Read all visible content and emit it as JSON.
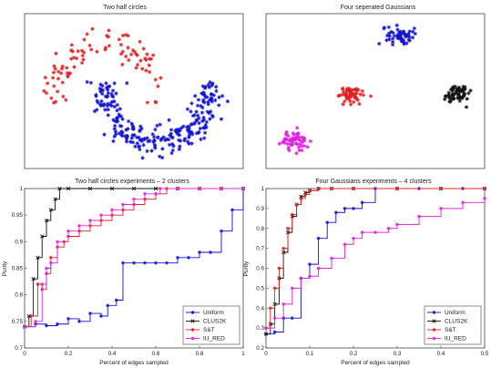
{
  "figure": {
    "panels": [
      {
        "id": "p1",
        "title": "Two half circles"
      },
      {
        "id": "p2",
        "title": "Four seperated Gaussians"
      },
      {
        "id": "p3",
        "title": "Two half circles experiments – 2 clusters"
      },
      {
        "id": "p4",
        "title": "Four Gaussians experiments – 4 clusters"
      }
    ]
  },
  "chart_data": [
    {
      "type": "scatter",
      "title": "Two half circles",
      "xlim": [
        -1.5,
        2.6
      ],
      "ylim": [
        -1.05,
        1.45
      ],
      "ticks": false,
      "series": [
        {
          "color": "#e02020",
          "shape": "upper-half-moon",
          "center": [
            0,
            0
          ],
          "radius": 1.0,
          "points": 90
        },
        {
          "color": "#1010d0",
          "shape": "lower-half-moon",
          "center": [
            1.0,
            0.35
          ],
          "radius": 1.0,
          "points": 260
        }
      ]
    },
    {
      "type": "scatter",
      "title": "Four seperated Gaussians",
      "xlim": [
        -1.2,
        4.0
      ],
      "ylim": [
        -1.6,
        3.2
      ],
      "ticks": false,
      "series": [
        {
          "color": "#1010d0",
          "center": [
            2.0,
            2.5
          ],
          "sd": 0.15,
          "points": 60
        },
        {
          "color": "#e02020",
          "center": [
            0.8,
            0.7
          ],
          "sd": 0.15,
          "points": 60
        },
        {
          "color": "#101010",
          "center": [
            3.3,
            0.7
          ],
          "sd": 0.15,
          "points": 60
        },
        {
          "color": "#e020e0",
          "center": [
            -0.5,
            -0.7
          ],
          "sd": 0.15,
          "points": 60
        }
      ]
    },
    {
      "type": "line",
      "title": "Two half circles experiments – 2 clusters",
      "xlabel": "Percent of edges sampled",
      "ylabel": "Purity",
      "xlim": [
        0,
        1
      ],
      "ylim": [
        0.7,
        1.0
      ],
      "xticks": [
        "0",
        "0.2",
        "0.4",
        "0.6",
        "0.8",
        "1"
      ],
      "yticks": [
        "0.7",
        "0.75",
        "0.8",
        "0.85",
        "0.9",
        "0.95",
        "1"
      ],
      "legend": "bottom-right",
      "series": [
        {
          "name": "Uniform",
          "color": "#1010d0",
          "marker": "*",
          "x": [
            0.0,
            0.05,
            0.1,
            0.15,
            0.2,
            0.25,
            0.3,
            0.35,
            0.38,
            0.42,
            0.45,
            0.5,
            0.55,
            0.6,
            0.65,
            0.7,
            0.75,
            0.8,
            0.85,
            0.9,
            0.95,
            1.0
          ],
          "y": [
            0.74,
            0.745,
            0.742,
            0.745,
            0.755,
            0.75,
            0.765,
            0.76,
            0.78,
            0.79,
            0.86,
            0.86,
            0.86,
            0.86,
            0.86,
            0.87,
            0.87,
            0.88,
            0.88,
            0.92,
            0.96,
            1.0
          ]
        },
        {
          "name": "CLUS2K",
          "color": "#101010",
          "marker": "x",
          "x": [
            0.0,
            0.02,
            0.04,
            0.06,
            0.08,
            0.1,
            0.12,
            0.14,
            0.16,
            0.2,
            0.3,
            0.4,
            0.5,
            0.6,
            0.7,
            0.8,
            0.9,
            1.0
          ],
          "y": [
            0.74,
            0.76,
            0.83,
            0.87,
            0.91,
            0.94,
            0.96,
            0.98,
            1.0,
            1.0,
            1.0,
            1.0,
            1.0,
            1.0,
            1.0,
            1.0,
            1.0,
            1.0
          ]
        },
        {
          "name": "S&T",
          "color": "#e02020",
          "marker": "*",
          "x": [
            0.0,
            0.03,
            0.06,
            0.08,
            0.1,
            0.12,
            0.15,
            0.18,
            0.2,
            0.25,
            0.3,
            0.35,
            0.4,
            0.45,
            0.5,
            0.55,
            0.6,
            0.65,
            0.7,
            0.8,
            0.9,
            1.0
          ],
          "y": [
            0.74,
            0.76,
            0.82,
            0.81,
            0.84,
            0.87,
            0.89,
            0.9,
            0.91,
            0.92,
            0.93,
            0.94,
            0.95,
            0.96,
            0.97,
            0.98,
            0.99,
            1.0,
            1.0,
            1.0,
            1.0,
            1.0
          ]
        },
        {
          "name": "IU_RED",
          "color": "#e020e0",
          "marker": "*",
          "x": [
            0.0,
            0.05,
            0.08,
            0.1,
            0.12,
            0.15,
            0.2,
            0.25,
            0.3,
            0.35,
            0.4,
            0.45,
            0.5,
            0.55,
            0.6,
            0.62,
            0.7,
            0.8,
            0.9,
            1.0
          ],
          "y": [
            0.74,
            0.75,
            0.82,
            0.85,
            0.86,
            0.9,
            0.92,
            0.93,
            0.94,
            0.95,
            0.96,
            0.97,
            0.98,
            0.99,
            0.99,
            1.0,
            1.0,
            1.0,
            1.0,
            1.0
          ]
        }
      ]
    },
    {
      "type": "line",
      "title": "Four Gaussians experiments – 4 clusters",
      "xlabel": "Percent of edges sampled",
      "ylabel": "Purity",
      "xlim": [
        0,
        0.5
      ],
      "ylim": [
        0.2,
        1.0
      ],
      "xticks": [
        "0",
        "0.1",
        "0.2",
        "0.3",
        "0.4",
        "0.5"
      ],
      "yticks": [
        "0.2",
        "0.3",
        "0.4",
        "0.5",
        "0.6",
        "0.7",
        "0.8",
        "0.9",
        "1"
      ],
      "legend": "bottom-right",
      "series": [
        {
          "name": "Uniform",
          "color": "#1010d0",
          "marker": "*",
          "x": [
            0.0,
            0.02,
            0.04,
            0.06,
            0.08,
            0.1,
            0.12,
            0.14,
            0.16,
            0.18,
            0.2,
            0.22,
            0.25,
            0.3,
            0.35,
            0.4,
            0.45,
            0.5
          ],
          "y": [
            0.27,
            0.28,
            0.35,
            0.35,
            0.55,
            0.62,
            0.75,
            0.83,
            0.88,
            0.9,
            0.9,
            0.93,
            1.0,
            1.0,
            1.0,
            1.0,
            1.0,
            1.0
          ]
        },
        {
          "name": "CLUS2K",
          "color": "#101010",
          "marker": "x",
          "x": [
            0.0,
            0.01,
            0.02,
            0.03,
            0.04,
            0.05,
            0.06,
            0.07,
            0.08,
            0.09,
            0.1,
            0.12,
            0.15,
            0.2,
            0.3,
            0.4,
            0.5
          ],
          "y": [
            0.27,
            0.32,
            0.42,
            0.55,
            0.68,
            0.78,
            0.86,
            0.92,
            0.96,
            0.98,
            0.99,
            1.0,
            1.0,
            1.0,
            1.0,
            1.0,
            1.0
          ]
        },
        {
          "name": "S&T",
          "color": "#e02020",
          "marker": "*",
          "x": [
            0.0,
            0.01,
            0.02,
            0.03,
            0.04,
            0.05,
            0.06,
            0.07,
            0.08,
            0.09,
            0.1,
            0.12,
            0.15,
            0.2,
            0.3,
            0.4,
            0.5
          ],
          "y": [
            0.3,
            0.4,
            0.5,
            0.6,
            0.7,
            0.8,
            0.87,
            0.92,
            0.95,
            0.97,
            0.99,
            1.0,
            1.0,
            1.0,
            1.0,
            1.0,
            1.0
          ]
        },
        {
          "name": "IU_RED",
          "color": "#e020e0",
          "marker": "*",
          "x": [
            0.0,
            0.02,
            0.04,
            0.06,
            0.08,
            0.1,
            0.12,
            0.15,
            0.18,
            0.2,
            0.22,
            0.25,
            0.28,
            0.3,
            0.35,
            0.4,
            0.45,
            0.5
          ],
          "y": [
            0.3,
            0.35,
            0.42,
            0.5,
            0.55,
            0.56,
            0.6,
            0.65,
            0.72,
            0.75,
            0.78,
            0.78,
            0.8,
            0.82,
            0.86,
            0.9,
            0.93,
            0.95
          ]
        }
      ]
    }
  ]
}
